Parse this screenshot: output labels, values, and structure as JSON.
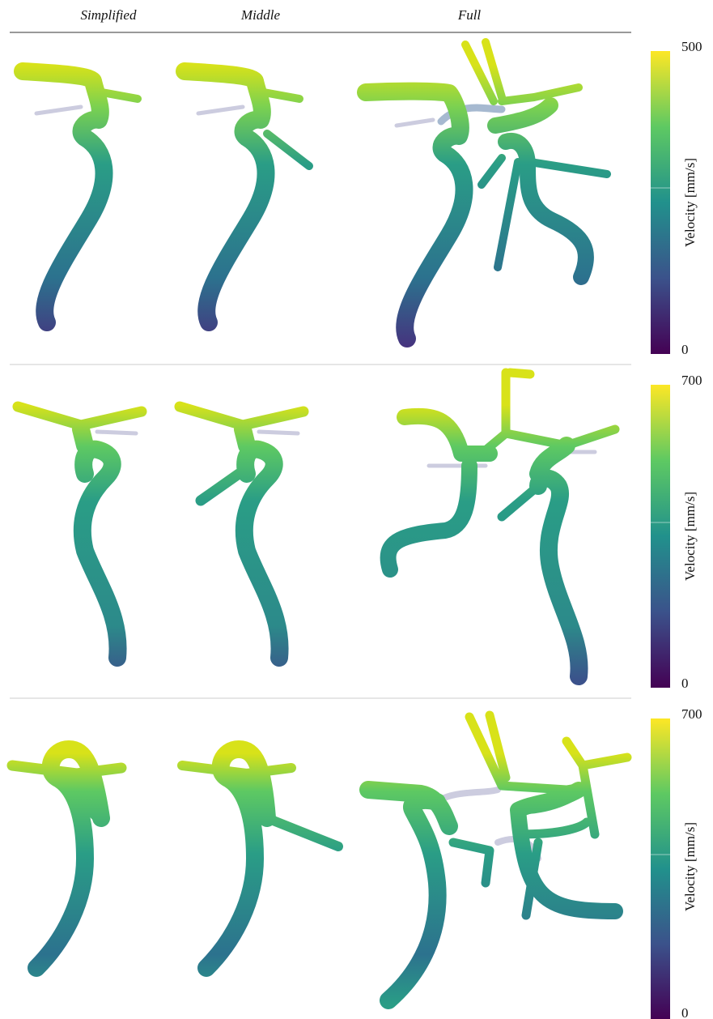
{
  "columns": [
    "Simplified",
    "Middle",
    "Full"
  ],
  "rows": [
    {
      "colorbar": {
        "label": "Velocity [mm/s]",
        "max": 500,
        "min": 0
      }
    },
    {
      "colorbar": {
        "label": "Velocity [mm/s]",
        "max": 700,
        "min": 0
      }
    },
    {
      "colorbar": {
        "label": "Velocity [mm/s]",
        "max": 700,
        "min": 0
      }
    }
  ]
}
